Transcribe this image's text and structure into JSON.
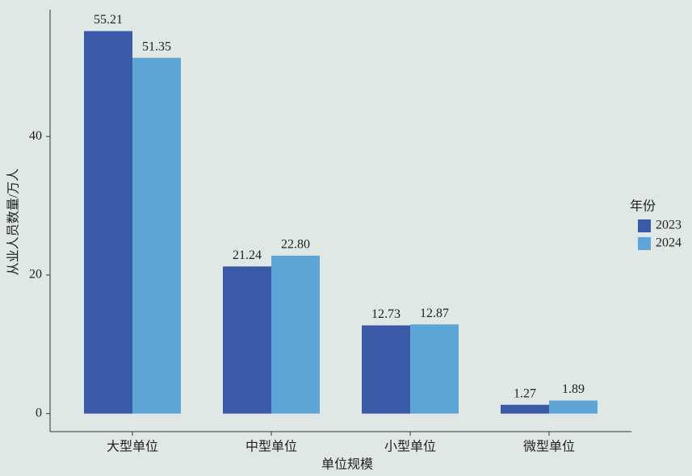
{
  "chart_data": {
    "type": "bar",
    "x_label": "单位规模",
    "y_label": "从业人员数量/万人",
    "categories": [
      "大型单位",
      "中型单位",
      "小型单位",
      "微型单位"
    ],
    "series": [
      {
        "name": "2023",
        "color": "#3a5aa8",
        "values": [
          55.21,
          21.24,
          12.73,
          1.27
        ],
        "value_labels": [
          "55.21",
          "21.24",
          "12.73",
          "1.27"
        ]
      },
      {
        "name": "2024",
        "color": "#5fa6d8",
        "values": [
          51.35,
          22.8,
          12.87,
          1.89
        ],
        "value_labels": [
          "51.35",
          "22.80",
          "12.87",
          "1.89"
        ]
      }
    ],
    "legend_title": "年份",
    "ylim": [
      -2.6,
      58.3
    ],
    "yticks": [
      0,
      20,
      40
    ]
  }
}
